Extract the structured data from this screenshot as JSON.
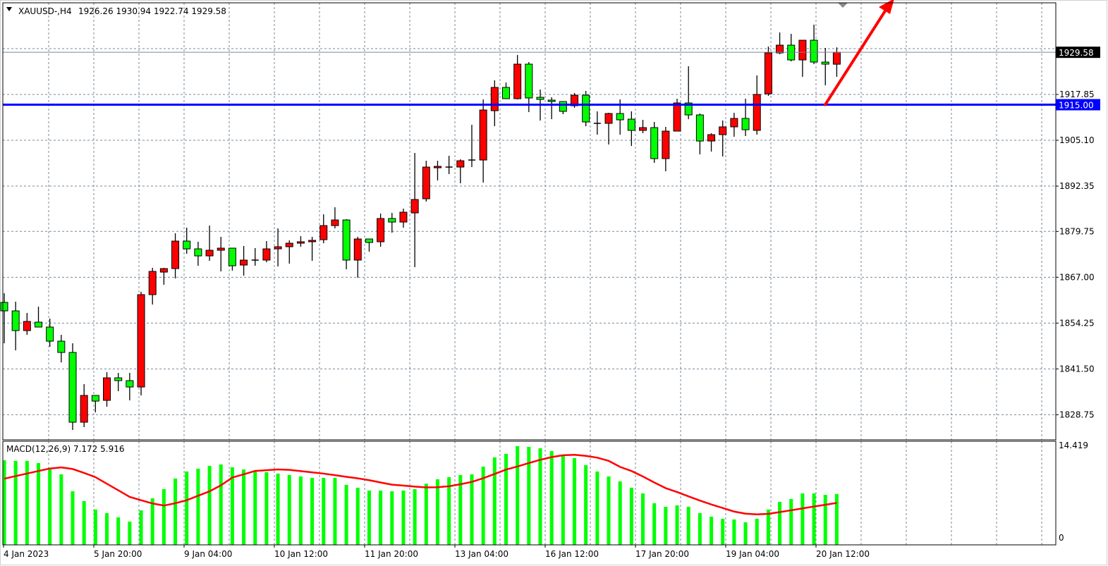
{
  "header": {
    "symbol_timeframe": "XAUUSD-,H4",
    "ohlc_readout": "1926.26 1930.94 1922.74 1929.58",
    "dropdown_icon": "triangle-down-icon"
  },
  "colors": {
    "bull_body": "#ff0000",
    "bear_body": "#00ff00",
    "outline": "#000000",
    "grid": "#778899",
    "hline": "#0000ff",
    "arrow": "#ff0000",
    "macd_hist": "#00ff00",
    "macd_signal": "#ff0000",
    "price_label_bg": "#000000",
    "hline_label_bg": "#0000ff"
  },
  "chart_data": [
    {
      "type": "candlestick",
      "title": "XAUUSD-,H4",
      "candle_color_rule": "red = close above open, green = close below open",
      "price_ticks": [
        1930.6,
        1917.85,
        1905.1,
        1892.35,
        1879.75,
        1867.0,
        1854.25,
        1841.5,
        1828.75
      ],
      "price_tick_labels": [
        "1917.85",
        "1905.10",
        "1892.35",
        "1879.75",
        "1867.00",
        "1854.25",
        "1841.50",
        "1828.75"
      ],
      "current_price": 1929.58,
      "current_price_label": "1929.58",
      "horizontal_line": 1915.0,
      "horizontal_line_label": "1915.00",
      "time_labels": [
        "4 Jan 2023",
        "5 Jan 20:00",
        "9 Jan 04:00",
        "10 Jan 12:00",
        "11 Jan 20:00",
        "13 Jan 04:00",
        "16 Jan 12:00",
        "17 Jan 20:00",
        "19 Jan 04:00",
        "20 Jan 12:00"
      ],
      "grid": true,
      "annotation": "red arrow pointing up-right from the 1915.00 line",
      "ohlc": [
        [
          1860.0,
          1862.55,
          1848.63,
          1857.65
        ],
        [
          1857.65,
          1860.2,
          1846.67,
          1852.16
        ],
        [
          1852.16,
          1857.06,
          1850.98,
          1854.71
        ],
        [
          1854.51,
          1858.83,
          1853.14,
          1853.14
        ],
        [
          1853.14,
          1855.49,
          1847.65,
          1849.22
        ],
        [
          1849.22,
          1850.98,
          1843.33,
          1846.08
        ],
        [
          1846.08,
          1848.63,
          1824.51,
          1826.67
        ],
        [
          1826.67,
          1837.26,
          1825.3,
          1834.12
        ],
        [
          1834.12,
          1834.12,
          1829.41,
          1832.55
        ],
        [
          1832.75,
          1840.59,
          1830.98,
          1839.02
        ],
        [
          1839.02,
          1840.39,
          1835.3,
          1838.24
        ],
        [
          1838.24,
          1840.39,
          1832.75,
          1836.47
        ],
        [
          1836.47,
          1862.94,
          1834.12,
          1862.16
        ],
        [
          1862.16,
          1869.61,
          1859.41,
          1868.63
        ],
        [
          1868.43,
          1869.61,
          1864.9,
          1869.41
        ],
        [
          1869.41,
          1879.22,
          1866.67,
          1877.06
        ],
        [
          1877.06,
          1880.79,
          1873.53,
          1874.9
        ],
        [
          1874.9,
          1876.87,
          1870.2,
          1872.94
        ],
        [
          1872.94,
          1881.37,
          1871.57,
          1874.51
        ],
        [
          1874.51,
          1878.24,
          1868.63,
          1875.1
        ],
        [
          1875.1,
          1875.1,
          1868.83,
          1870.2
        ],
        [
          1870.39,
          1875.69,
          1867.45,
          1871.77
        ],
        [
          1871.77,
          1875.1,
          1870.2,
          1871.77
        ],
        [
          1871.77,
          1877.06,
          1871.18,
          1874.9
        ],
        [
          1874.9,
          1880.59,
          1870.0,
          1875.49
        ],
        [
          1875.49,
          1877.26,
          1870.79,
          1876.47
        ],
        [
          1876.47,
          1878.43,
          1875.49,
          1876.87
        ],
        [
          1876.87,
          1878.24,
          1871.57,
          1877.26
        ],
        [
          1877.45,
          1884.51,
          1876.47,
          1881.37
        ],
        [
          1881.37,
          1886.47,
          1880.59,
          1882.94
        ],
        [
          1882.94,
          1883.14,
          1869.22,
          1871.77
        ],
        [
          1871.77,
          1878.24,
          1866.86,
          1877.65
        ],
        [
          1877.65,
          1877.65,
          1874.12,
          1876.67
        ],
        [
          1876.87,
          1884.71,
          1875.49,
          1883.34
        ],
        [
          1883.34,
          1884.9,
          1879.41,
          1882.35
        ],
        [
          1882.35,
          1886.08,
          1880.79,
          1885.1
        ],
        [
          1884.9,
          1901.57,
          1869.81,
          1888.63
        ],
        [
          1888.83,
          1899.41,
          1888.04,
          1897.65
        ],
        [
          1897.45,
          1899.41,
          1893.92,
          1897.85
        ],
        [
          1897.65,
          1900.79,
          1895.69,
          1897.65
        ],
        [
          1897.65,
          1899.81,
          1893.14,
          1899.41
        ],
        [
          1899.41,
          1909.41,
          1897.65,
          1899.61
        ],
        [
          1899.61,
          1916.47,
          1893.34,
          1913.53
        ],
        [
          1913.33,
          1921.77,
          1909.02,
          1919.81
        ],
        [
          1919.81,
          1921.18,
          1916.67,
          1916.67
        ],
        [
          1916.67,
          1928.83,
          1916.47,
          1926.28
        ],
        [
          1926.28,
          1926.86,
          1912.94,
          1916.87
        ],
        [
          1917.06,
          1919.22,
          1910.59,
          1916.47
        ],
        [
          1916.28,
          1917.06,
          1910.98,
          1915.88
        ],
        [
          1915.88,
          1915.88,
          1912.36,
          1913.14
        ],
        [
          1914.71,
          1918.24,
          1914.12,
          1917.65
        ],
        [
          1917.65,
          1918.83,
          1909.02,
          1910.2
        ],
        [
          1909.81,
          1913.14,
          1906.67,
          1909.81
        ],
        [
          1909.81,
          1912.75,
          1903.92,
          1912.55
        ],
        [
          1912.55,
          1916.47,
          1906.67,
          1910.79
        ],
        [
          1910.98,
          1913.14,
          1903.53,
          1907.85
        ],
        [
          1907.85,
          1910.79,
          1907.06,
          1908.63
        ],
        [
          1908.63,
          1910.2,
          1898.83,
          1900.0
        ],
        [
          1900.0,
          1908.83,
          1896.47,
          1907.65
        ],
        [
          1907.65,
          1916.67,
          1907.65,
          1915.49
        ],
        [
          1915.49,
          1925.69,
          1910.98,
          1912.16
        ],
        [
          1912.16,
          1912.55,
          1901.18,
          1904.9
        ],
        [
          1904.9,
          1907.06,
          1901.96,
          1906.67
        ],
        [
          1906.67,
          1910.59,
          1900.59,
          1908.83
        ],
        [
          1908.83,
          1912.75,
          1906.08,
          1911.18
        ],
        [
          1911.18,
          1916.67,
          1906.28,
          1908.04
        ],
        [
          1907.85,
          1923.14,
          1906.67,
          1917.85
        ],
        [
          1918.04,
          1931.18,
          1917.45,
          1929.41
        ],
        [
          1929.41,
          1935.1,
          1929.02,
          1931.57
        ],
        [
          1931.57,
          1934.71,
          1927.06,
          1927.45
        ],
        [
          1927.45,
          1932.94,
          1922.75,
          1932.94
        ],
        [
          1932.94,
          1937.26,
          1926.28,
          1926.86
        ],
        [
          1926.86,
          1930.79,
          1920.39,
          1926.28
        ],
        [
          1926.26,
          1930.94,
          1922.74,
          1929.58
        ]
      ]
    },
    {
      "type": "bar",
      "title": "MACD(12,26,9) 7.172 5.916",
      "title_name": "MACD(12,26,9)",
      "title_values": "7.172 5.916",
      "y_ticks": [
        "14.419",
        "0"
      ],
      "ylim": [
        0,
        14.419
      ],
      "histogram": [
        11.94,
        11.84,
        11.84,
        11.55,
        10.64,
        9.95,
        7.56,
        6.17,
        4.98,
        4.47,
        3.88,
        3.28,
        4.87,
        6.57,
        7.86,
        9.36,
        10.35,
        10.75,
        11.15,
        11.35,
        10.95,
        10.64,
        10.35,
        10.25,
        10.05,
        9.85,
        9.65,
        9.45,
        9.45,
        9.45,
        8.46,
        8.06,
        7.66,
        7.66,
        7.56,
        7.66,
        7.86,
        8.63,
        9.25,
        9.55,
        9.85,
        9.95,
        11.04,
        12.34,
        12.83,
        13.93,
        13.83,
        13.63,
        13.23,
        12.54,
        12.24,
        11.24,
        10.35,
        9.65,
        8.96,
        8.06,
        7.26,
        5.87,
        5.37,
        5.57,
        5.37,
        4.47,
        3.98,
        3.68,
        3.58,
        3.18,
        3.68,
        4.98,
        6.07,
        6.46,
        7.26,
        7.26,
        7.06,
        7.17
      ],
      "signal": [
        9.33,
        9.7,
        10.06,
        10.42,
        10.77,
        10.93,
        10.7,
        10.15,
        9.55,
        8.62,
        7.7,
        6.77,
        6.3,
        5.84,
        5.54,
        5.87,
        6.3,
        6.93,
        7.55,
        8.4,
        9.5,
        9.95,
        10.43,
        10.53,
        10.64,
        10.58,
        10.4,
        10.23,
        10.05,
        9.83,
        9.6,
        9.38,
        9.12,
        8.8,
        8.49,
        8.36,
        8.22,
        8.1,
        8.13,
        8.27,
        8.55,
        8.88,
        9.4,
        10.0,
        10.62,
        11.06,
        11.54,
        12.0,
        12.38,
        12.64,
        12.7,
        12.55,
        12.3,
        11.85,
        11.0,
        10.42,
        9.65,
        8.8,
        8.0,
        7.45,
        6.84,
        6.25,
        5.7,
        5.2,
        4.7,
        4.4,
        4.3,
        4.38,
        4.62,
        4.88,
        5.15,
        5.4,
        5.66,
        5.92
      ]
    }
  ]
}
